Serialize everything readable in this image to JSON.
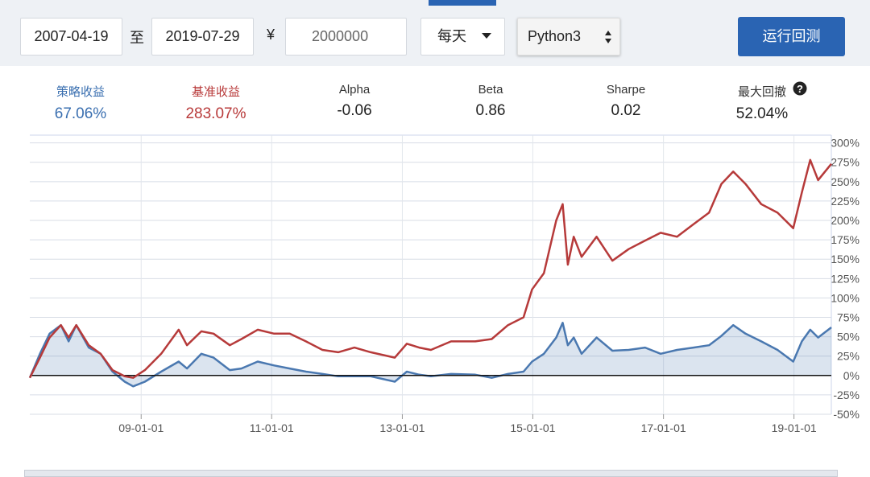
{
  "toolbar": {
    "start_date": "2007-04-19",
    "to_label": "至",
    "end_date": "2019-07-29",
    "currency": "¥",
    "capital": "2000000",
    "frequency": "每天",
    "language": "Python3",
    "run_button": "运行回测"
  },
  "stats": [
    {
      "label": "策略收益",
      "value": "67.06%"
    },
    {
      "label": "基准收益",
      "value": "283.07%"
    },
    {
      "label": "Alpha",
      "value": "-0.06"
    },
    {
      "label": "Beta",
      "value": "0.86"
    },
    {
      "label": "Sharpe",
      "value": "0.02"
    },
    {
      "label": "最大回撤",
      "value": "52.04%"
    }
  ],
  "chart_data": {
    "type": "line",
    "x": [
      "07-04-19",
      "07-06-15",
      "07-08-08",
      "07-10-10",
      "07-11-22",
      "08-01-04",
      "08-03-14",
      "08-05-19",
      "08-07-25",
      "08-10-01",
      "08-11-17",
      "09-01-22",
      "09-04-23",
      "09-07-30",
      "09-09-14",
      "09-12-04",
      "10-02-10",
      "10-05-12",
      "10-07-16",
      "10-10-15",
      "11-01-15",
      "11-04-12",
      "11-07-12",
      "11-10-12",
      "12-01-08",
      "12-04-08",
      "12-07-08",
      "12-11-20",
      "13-01-26",
      "13-04-05",
      "13-06-10",
      "13-10-01",
      "14-02-13",
      "14-05-16",
      "14-08-15",
      "14-11-10",
      "14-12-28",
      "15-03-04",
      "15-05-12",
      "15-06-17",
      "15-07-16",
      "15-08-18",
      "15-10-01",
      "15-12-24",
      "16-03-21",
      "16-06-20",
      "16-09-20",
      "16-12-16",
      "17-03-18",
      "17-06-18",
      "17-09-13",
      "17-11-21",
      "18-01-26",
      "18-04-05",
      "18-07-02",
      "18-10-01",
      "18-12-28",
      "19-02-14",
      "19-04-02",
      "19-05-16",
      "19-07-29"
    ],
    "series": [
      {
        "color": "#4a78b0",
        "area": true,
        "values": [
          -3,
          28,
          54,
          65,
          44,
          65,
          36,
          28,
          5,
          -8,
          -14,
          -8,
          5,
          18,
          9,
          28,
          23,
          7,
          9,
          18,
          13,
          9,
          5,
          2,
          -1,
          -1,
          -1,
          -8,
          5,
          1,
          -1,
          2,
          1,
          -3,
          2,
          5,
          18,
          28,
          49,
          68,
          39,
          49,
          28,
          49,
          32,
          33,
          36,
          28,
          33,
          36,
          39,
          51,
          65,
          54,
          44,
          33,
          18,
          44,
          59,
          49,
          62
        ]
      },
      {
        "color": "#b63a3a",
        "area": false,
        "values": [
          -3,
          23,
          49,
          65,
          49,
          65,
          39,
          28,
          7,
          -1,
          -3,
          7,
          28,
          59,
          39,
          57,
          54,
          39,
          47,
          59,
          54,
          54,
          44,
          33,
          30,
          36,
          30,
          23,
          41,
          36,
          33,
          44,
          44,
          47,
          65,
          75,
          111,
          132,
          200,
          221,
          143,
          179,
          153,
          179,
          148,
          163,
          174,
          184,
          179,
          195,
          210,
          247,
          263,
          247,
          221,
          210,
          190,
          236,
          278,
          252,
          273
        ]
      }
    ],
    "xlim": [
      "07-04-19",
      "19-07-29"
    ],
    "xticks": [
      "09-01-01",
      "11-01-01",
      "13-01-01",
      "15-01-01",
      "17-01-01",
      "19-01-01"
    ],
    "ylim": [
      -50,
      310
    ],
    "yticks": [
      {
        "value": -50,
        "label": "-50%"
      },
      {
        "value": -25,
        "label": "-25%"
      },
      {
        "value": 0,
        "label": "0%"
      },
      {
        "value": 25,
        "label": "25%"
      },
      {
        "value": 50,
        "label": "50%"
      },
      {
        "value": 75,
        "label": "75%"
      },
      {
        "value": 100,
        "label": "100%"
      },
      {
        "value": 125,
        "label": "125%"
      },
      {
        "value": 150,
        "label": "150%"
      },
      {
        "value": 175,
        "label": "175%"
      },
      {
        "value": 200,
        "label": "200%"
      },
      {
        "value": 225,
        "label": "225%"
      },
      {
        "value": 250,
        "label": "250%"
      },
      {
        "value": 275,
        "label": "275%"
      },
      {
        "value": 300,
        "label": "300%"
      }
    ],
    "grid": true
  }
}
